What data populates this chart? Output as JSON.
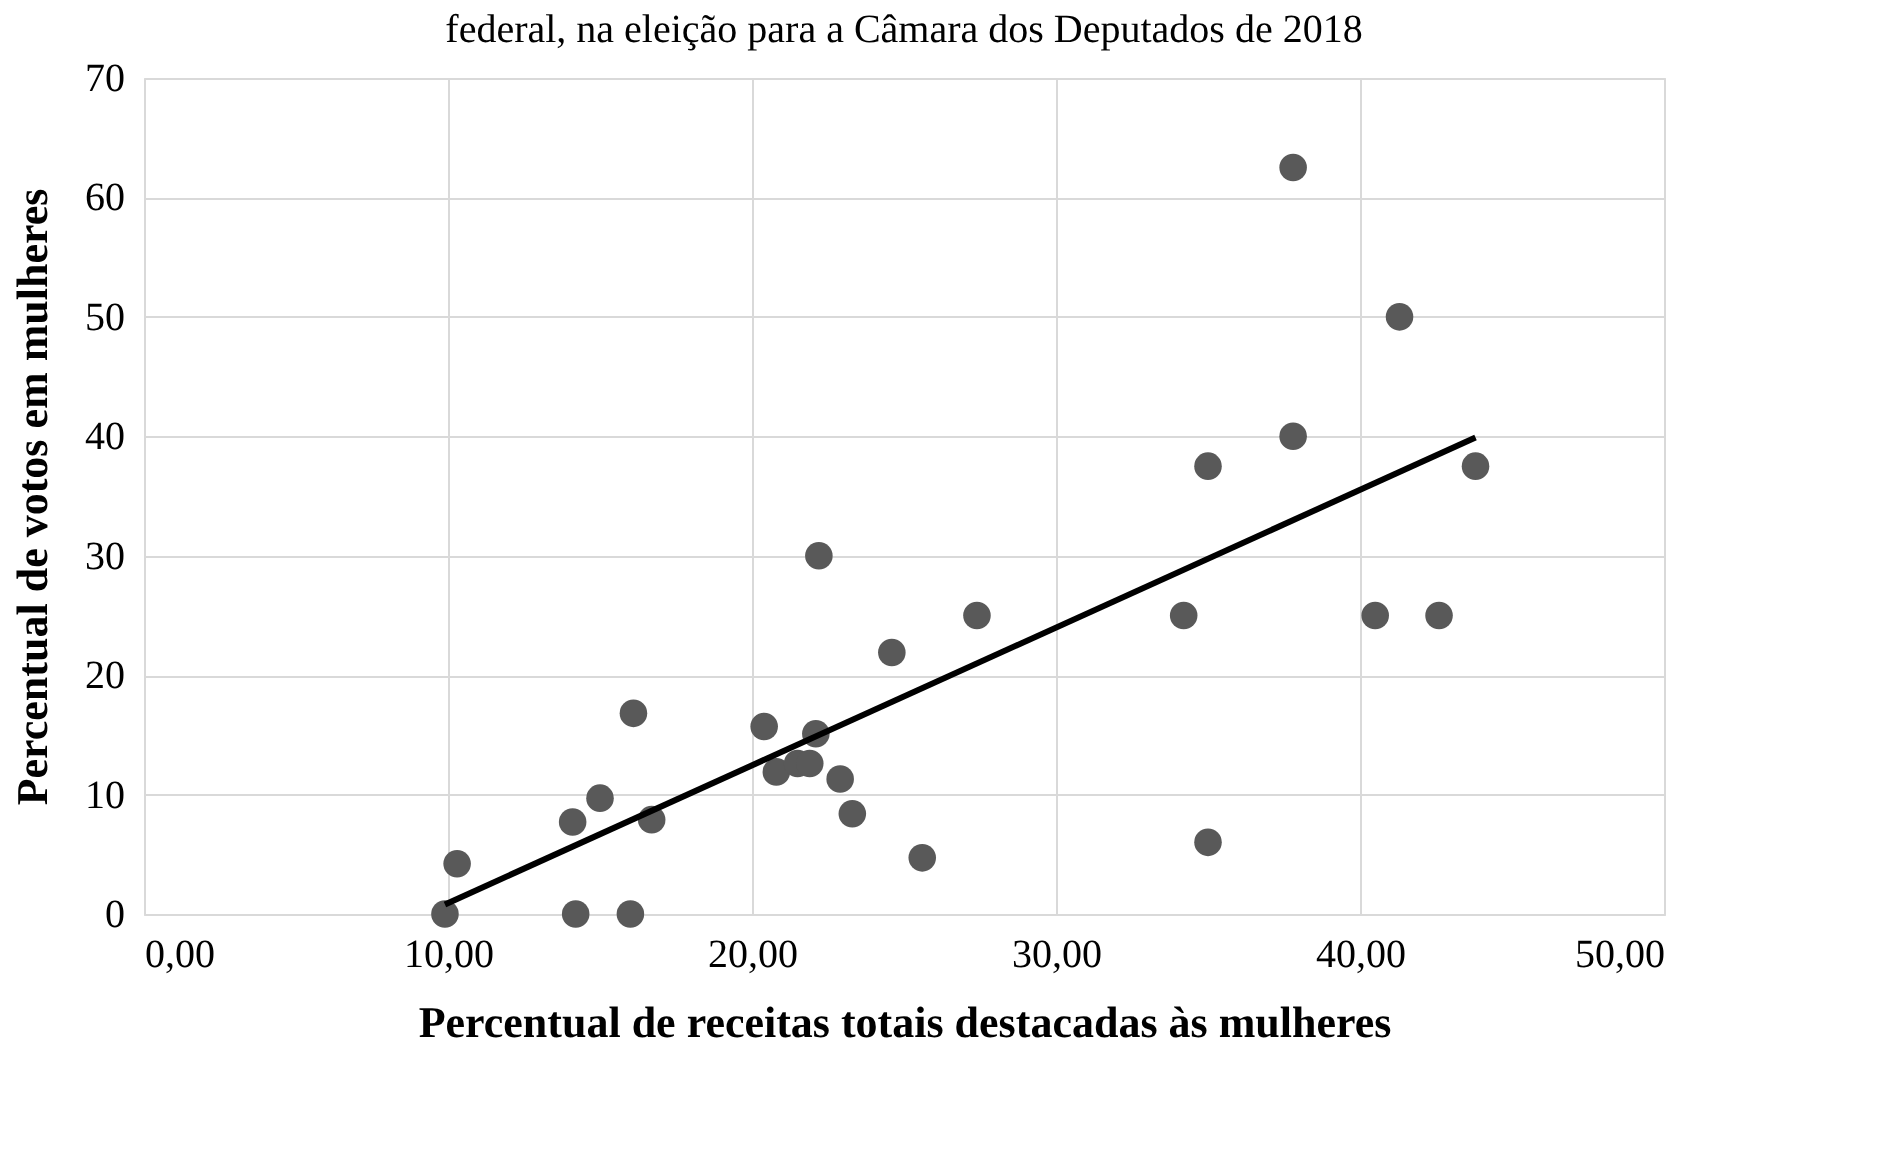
{
  "chart_data": {
    "type": "scatter",
    "title": "federal, na eleição para a Câmara dos Deputados de 2018",
    "xlabel": "Percentual de receitas totais destacadas às mulheres",
    "ylabel": "Percentual de votos em mulheres",
    "xlim": [
      0,
      50
    ],
    "ylim": [
      0,
      70
    ],
    "xticks": [
      {
        "value": 0,
        "label": "0,00"
      },
      {
        "value": 10,
        "label": "10,00"
      },
      {
        "value": 20,
        "label": "20,00"
      },
      {
        "value": 30,
        "label": "30,00"
      },
      {
        "value": 40,
        "label": "40,00"
      },
      {
        "value": 50,
        "label": "50,00"
      }
    ],
    "yticks": [
      0,
      10,
      20,
      30,
      40,
      50,
      60,
      70
    ],
    "grid": true,
    "series": [
      {
        "marker": "circle",
        "color": "#595959",
        "x": [
          9.9,
          10.3,
          14.1,
          14.2,
          15.0,
          16.0,
          16.1,
          16.7,
          20.4,
          20.8,
          21.5,
          21.9,
          22.1,
          22.2,
          22.9,
          23.3,
          24.6,
          25.6,
          27.4,
          34.2,
          35.0,
          35.0,
          37.8,
          37.8,
          40.5,
          41.3,
          42.6,
          43.8
        ],
        "values": [
          0,
          4.2,
          7.7,
          0,
          9.7,
          0,
          16.8,
          7.9,
          15.7,
          11.9,
          12.6,
          12.6,
          15.1,
          30.0,
          11.3,
          8.4,
          21.9,
          4.7,
          25.0,
          25.0,
          37.5,
          6.0,
          62.5,
          40.0,
          25.0,
          50.0,
          25.0,
          37.5
        ]
      },
      {
        "type": "line",
        "marker": "none",
        "color": "#000000",
        "line_style": "solid",
        "x": [
          9.9,
          43.8
        ],
        "values": [
          0.8,
          39.9
        ]
      }
    ]
  }
}
